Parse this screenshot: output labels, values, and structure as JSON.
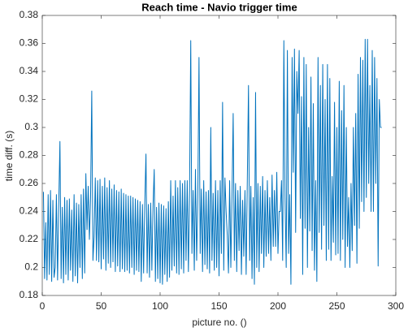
{
  "chart_data": {
    "type": "line",
    "title": "Reach time - Navio trigger time",
    "xlabel": "picture no. ()",
    "ylabel": "time diff. (s)",
    "xlim": [
      0,
      300
    ],
    "xticks": [
      0,
      50,
      100,
      150,
      200,
      250,
      300
    ],
    "ylim": [
      0.18,
      0.38
    ],
    "yticks": [
      0.18,
      0.2,
      0.22,
      0.24,
      0.26,
      0.28,
      0.3,
      0.32,
      0.34,
      0.36,
      0.38
    ],
    "grid": false,
    "series": [
      {
        "name": "time diff",
        "color": "#0072bd",
        "x": [
          1,
          2,
          3,
          4,
          5,
          6,
          7,
          8,
          9,
          10,
          11,
          12,
          13,
          14,
          15,
          16,
          17,
          18,
          19,
          20,
          21,
          22,
          23,
          24,
          25,
          26,
          27,
          28,
          29,
          30,
          31,
          32,
          33,
          34,
          35,
          36,
          37,
          38,
          39,
          40,
          41,
          42,
          43,
          44,
          45,
          46,
          47,
          48,
          49,
          50,
          51,
          52,
          53,
          54,
          55,
          56,
          57,
          58,
          59,
          60,
          61,
          62,
          63,
          64,
          65,
          66,
          67,
          68,
          69,
          70,
          71,
          72,
          73,
          74,
          75,
          76,
          77,
          78,
          79,
          80,
          81,
          82,
          83,
          84,
          85,
          86,
          87,
          88,
          89,
          90,
          91,
          92,
          93,
          94,
          95,
          96,
          97,
          98,
          99,
          100,
          101,
          102,
          103,
          104,
          105,
          106,
          107,
          108,
          109,
          110,
          111,
          112,
          113,
          114,
          115,
          116,
          117,
          118,
          119,
          120,
          121,
          122,
          123,
          124,
          125,
          126,
          127,
          128,
          129,
          130,
          131,
          132,
          133,
          134,
          135,
          136,
          137,
          138,
          139,
          140,
          141,
          142,
          143,
          144,
          145,
          146,
          147,
          148,
          149,
          150,
          151,
          152,
          153,
          154,
          155,
          156,
          157,
          158,
          159,
          160,
          161,
          162,
          163,
          164,
          165,
          166,
          167,
          168,
          169,
          170,
          171,
          172,
          173,
          174,
          175,
          176,
          177,
          178,
          179,
          180,
          181,
          182,
          183,
          184,
          185,
          186,
          187,
          188,
          189,
          190,
          191,
          192,
          193,
          194,
          195,
          196,
          197,
          198,
          199,
          200,
          201,
          202,
          203,
          204,
          205,
          206,
          207,
          208,
          209,
          210,
          211,
          212,
          213,
          214,
          215,
          216,
          217,
          218,
          219,
          220,
          221,
          222,
          223,
          224,
          225,
          226,
          227,
          228,
          229,
          230,
          231,
          232,
          233,
          234,
          235,
          236,
          237,
          238,
          239,
          240,
          241,
          242,
          243,
          244,
          245,
          246,
          247,
          248,
          249,
          250,
          251,
          252,
          253,
          254,
          255,
          256,
          257,
          258,
          259,
          260,
          261,
          262,
          263,
          264,
          265,
          266,
          267,
          268,
          269,
          270,
          271,
          272,
          273,
          274,
          275,
          276,
          277,
          278,
          279,
          280,
          281,
          282,
          283,
          284,
          285,
          286,
          287,
          288
        ],
        "values": [
          0.254,
          0.192,
          0.232,
          0.191,
          0.252,
          0.195,
          0.255,
          0.19,
          0.248,
          0.193,
          0.2,
          0.252,
          0.191,
          0.245,
          0.29,
          0.192,
          0.243,
          0.189,
          0.25,
          0.195,
          0.248,
          0.191,
          0.249,
          0.198,
          0.241,
          0.19,
          0.252,
          0.194,
          0.246,
          0.189,
          0.245,
          0.2,
          0.252,
          0.192,
          0.256,
          0.196,
          0.267,
          0.227,
          0.258,
          0.22,
          0.25,
          0.326,
          0.205,
          0.222,
          0.264,
          0.205,
          0.262,
          0.204,
          0.263,
          0.199,
          0.258,
          0.206,
          0.264,
          0.198,
          0.257,
          0.203,
          0.262,
          0.2,
          0.256,
          0.204,
          0.259,
          0.197,
          0.255,
          0.201,
          0.254,
          0.197,
          0.256,
          0.199,
          0.253,
          0.197,
          0.252,
          0.198,
          0.251,
          0.196,
          0.251,
          0.2,
          0.25,
          0.195,
          0.249,
          0.198,
          0.248,
          0.197,
          0.247,
          0.19,
          0.245,
          0.196,
          0.246,
          0.281,
          0.196,
          0.245,
          0.193,
          0.246,
          0.198,
          0.244,
          0.27,
          0.19,
          0.243,
          0.192,
          0.246,
          0.189,
          0.245,
          0.188,
          0.244,
          0.195,
          0.242,
          0.19,
          0.247,
          0.193,
          0.262,
          0.198,
          0.251,
          0.201,
          0.262,
          0.196,
          0.257,
          0.195,
          0.262,
          0.199,
          0.26,
          0.196,
          0.262,
          0.205,
          0.262,
          0.197,
          0.255,
          0.362,
          0.21,
          0.255,
          0.198,
          0.27,
          0.205,
          0.25,
          0.35,
          0.21,
          0.256,
          0.197,
          0.262,
          0.202,
          0.254,
          0.199,
          0.255,
          0.196,
          0.3,
          0.205,
          0.253,
          0.198,
          0.262,
          0.2,
          0.255,
          0.194,
          0.262,
          0.21,
          0.318,
          0.198,
          0.264,
          0.24,
          0.223,
          0.196,
          0.262,
          0.2,
          0.25,
          0.31,
          0.205,
          0.26,
          0.197,
          0.255,
          0.212,
          0.258,
          0.195,
          0.248,
          0.208,
          0.255,
          0.195,
          0.262,
          0.33,
          0.205,
          0.258,
          0.192,
          0.25,
          0.188,
          0.325,
          0.2,
          0.26,
          0.197,
          0.258,
          0.21,
          0.265,
          0.2,
          0.255,
          0.208,
          0.262,
          0.21,
          0.25,
          0.205,
          0.266,
          0.215,
          0.255,
          0.215,
          0.268,
          0.21,
          0.24,
          0.24,
          0.262,
          0.205,
          0.362,
          0.25,
          0.2,
          0.355,
          0.21,
          0.252,
          0.188,
          0.35,
          0.268,
          0.356,
          0.225,
          0.34,
          0.31,
          0.355,
          0.235,
          0.322,
          0.195,
          0.35,
          0.228,
          0.345,
          0.2,
          0.3,
          0.226,
          0.336,
          0.212,
          0.317,
          0.198,
          0.262,
          0.19,
          0.35,
          0.225,
          0.33,
          0.213,
          0.345,
          0.23,
          0.32,
          0.205,
          0.345,
          0.213,
          0.335,
          0.205,
          0.265,
          0.218,
          0.318,
          0.209,
          0.3,
          0.21,
          0.333,
          0.205,
          0.312,
          0.22,
          0.33,
          0.2,
          0.3,
          0.215,
          0.25,
          0.2,
          0.26,
          0.212,
          0.3,
          0.23,
          0.31,
          0.203,
          0.338,
          0.228,
          0.35,
          0.247,
          0.348,
          0.24,
          0.363,
          0.25,
          0.363,
          0.26,
          0.33,
          0.24,
          0.355,
          0.24,
          0.35,
          0.26,
          0.335,
          0.201,
          0.32,
          0.3,
          0.3
        ]
      }
    ]
  }
}
